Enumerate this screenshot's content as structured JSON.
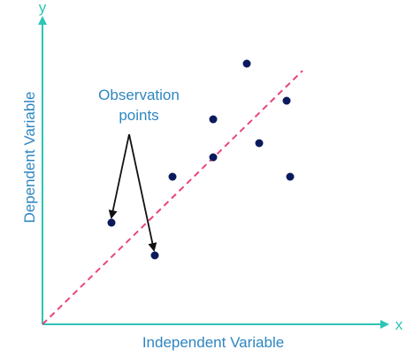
{
  "diagram": {
    "axes": {
      "x_letter": "x",
      "y_letter": "y",
      "x_label": "Independent Variable",
      "y_label": "Dependent Variable"
    },
    "annotation": {
      "line1": "Observation",
      "line2": "points"
    },
    "colors": {
      "axis": "#2ec4b6",
      "label": "#2e86c1",
      "point": "#0b1a5c",
      "trend_line": "#e8457a",
      "arrow": "#111111"
    }
  }
}
